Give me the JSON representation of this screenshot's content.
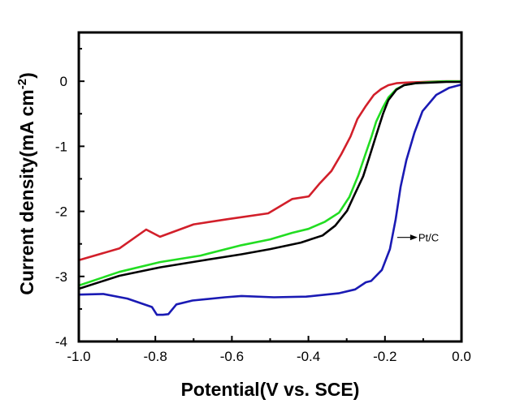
{
  "chart_data": {
    "type": "line",
    "title": "",
    "xlabel": "Potential(V vs. SCE)",
    "ylabel_main": "Current density(mA cm",
    "ylabel_sup": "-2",
    "ylabel_close": ")",
    "ylabel": "Current density(mA cm-2)",
    "xlim": [
      -1.0,
      0.0
    ],
    "ylim": [
      -4,
      0.75
    ],
    "grid": false,
    "legend": "none",
    "x_ticks": [
      -1.0,
      -0.8,
      -0.6,
      -0.4,
      -0.2,
      0.0
    ],
    "x_tick_labels": [
      "-1.0",
      "-0.8",
      "-0.6",
      "-0.4",
      "-0.2",
      "0.0"
    ],
    "x_minor_ticks": [
      -0.9,
      -0.7,
      -0.5,
      -0.3,
      -0.1
    ],
    "y_ticks": [
      0,
      -1,
      -2,
      -3,
      -4
    ],
    "y_tick_labels": [
      "0",
      "-1",
      "-2",
      "-3",
      "-4"
    ],
    "y_minor_ticks": [
      0.5,
      -0.5,
      -1.5,
      -2.5,
      -3.5
    ],
    "annotations": [
      {
        "text": "Pt/C",
        "target_series": "blue",
        "arrow_from_x": -0.168,
        "arrow_y": -2.4
      }
    ],
    "series": [
      {
        "name": "red",
        "color": "#d21f2a",
        "x": [
          -1.0,
          -0.894,
          -0.824,
          -0.788,
          -0.7,
          -0.611,
          -0.505,
          -0.442,
          -0.399,
          -0.372,
          -0.34,
          -0.314,
          -0.29,
          -0.272,
          -0.25,
          -0.229,
          -0.21,
          -0.191,
          -0.17,
          -0.144,
          -0.1,
          -0.05,
          0.0
        ],
        "y": [
          -2.75,
          -2.57,
          -2.28,
          -2.39,
          -2.2,
          -2.12,
          -2.03,
          -1.81,
          -1.77,
          -1.58,
          -1.38,
          -1.12,
          -0.85,
          -0.58,
          -0.38,
          -0.21,
          -0.12,
          -0.06,
          -0.03,
          -0.02,
          -0.01,
          0.0,
          0.0
        ]
      },
      {
        "name": "green",
        "color": "#22dd22",
        "x": [
          -1.0,
          -0.894,
          -0.788,
          -0.682,
          -0.575,
          -0.5,
          -0.442,
          -0.4,
          -0.357,
          -0.32,
          -0.293,
          -0.27,
          -0.251,
          -0.235,
          -0.223,
          -0.205,
          -0.191,
          -0.17,
          -0.15,
          -0.12,
          -0.08,
          -0.04,
          0.0
        ],
        "y": [
          -3.14,
          -2.93,
          -2.78,
          -2.68,
          -2.52,
          -2.43,
          -2.33,
          -2.27,
          -2.16,
          -2.02,
          -1.78,
          -1.45,
          -1.12,
          -0.85,
          -0.62,
          -0.4,
          -0.25,
          -0.12,
          -0.06,
          -0.03,
          -0.01,
          0.0,
          0.0
        ]
      },
      {
        "name": "black",
        "color": "#000000",
        "x": [
          -1.0,
          -0.894,
          -0.788,
          -0.682,
          -0.575,
          -0.5,
          -0.42,
          -0.363,
          -0.33,
          -0.299,
          -0.28,
          -0.257,
          -0.24,
          -0.223,
          -0.205,
          -0.191,
          -0.17,
          -0.15,
          -0.12,
          -0.08,
          -0.04,
          0.0
        ],
        "y": [
          -3.19,
          -2.99,
          -2.86,
          -2.76,
          -2.66,
          -2.58,
          -2.48,
          -2.37,
          -2.22,
          -1.99,
          -1.75,
          -1.46,
          -1.15,
          -0.83,
          -0.5,
          -0.29,
          -0.13,
          -0.06,
          -0.03,
          -0.02,
          -0.01,
          -0.01
        ]
      },
      {
        "name": "blue",
        "color": "#1a1ab4",
        "x": [
          -1.0,
          -0.936,
          -0.873,
          -0.809,
          -0.796,
          -0.78,
          -0.766,
          -0.745,
          -0.703,
          -0.618,
          -0.575,
          -0.49,
          -0.406,
          -0.321,
          -0.278,
          -0.25,
          -0.236,
          -0.208,
          -0.187,
          -0.172,
          -0.159,
          -0.144,
          -0.123,
          -0.102,
          -0.066,
          -0.032,
          -0.006,
          0.0
        ],
        "y": [
          -3.28,
          -3.27,
          -3.34,
          -3.47,
          -3.59,
          -3.59,
          -3.58,
          -3.43,
          -3.37,
          -3.32,
          -3.3,
          -3.32,
          -3.31,
          -3.26,
          -3.2,
          -3.09,
          -3.07,
          -2.9,
          -2.58,
          -2.12,
          -1.62,
          -1.21,
          -0.79,
          -0.46,
          -0.21,
          -0.1,
          -0.06,
          -0.05
        ]
      }
    ]
  }
}
